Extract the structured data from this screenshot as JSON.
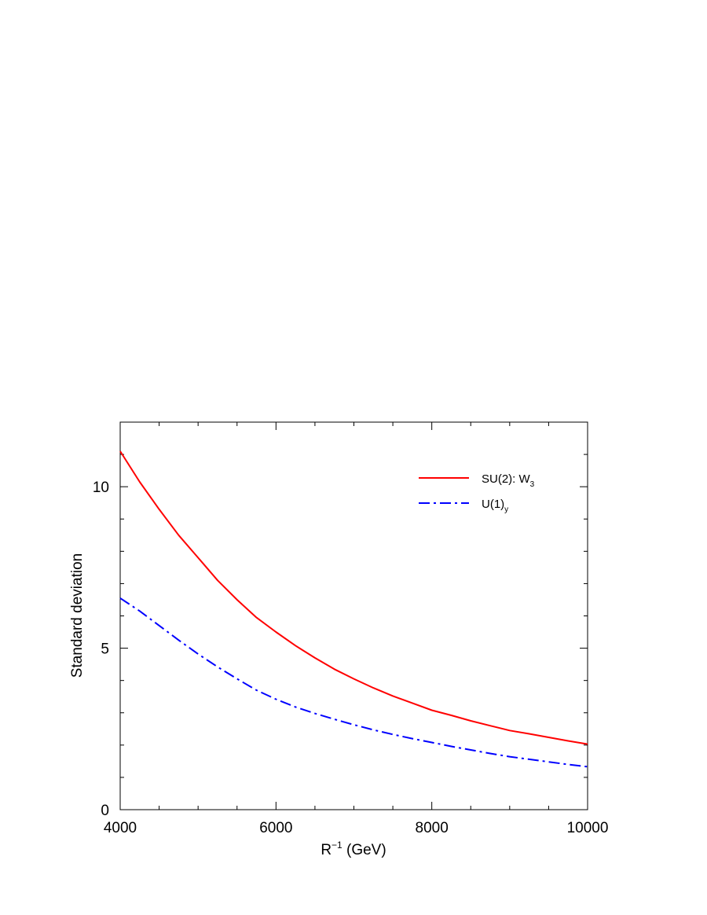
{
  "chart_data": {
    "type": "line",
    "xlabel": {
      "base": "R",
      "sup": "−1",
      "rest": " (GeV)"
    },
    "ylabel": "Standard deviation",
    "xlim": [
      4000,
      10000
    ],
    "ylim": [
      0,
      12
    ],
    "xticks": [
      4000,
      6000,
      8000,
      10000
    ],
    "yticks": [
      0,
      5,
      10
    ],
    "x_minor_step": 500,
    "y_minor_step": 1,
    "grid": false,
    "legend_position": "top-right",
    "series": [
      {
        "name": "SU(2): W",
        "name_sub": "3",
        "color": "#ff0000",
        "style": "solid",
        "x": [
          4000,
          4250,
          4500,
          4750,
          5000,
          5250,
          5500,
          5750,
          6000,
          6250,
          6500,
          6750,
          7000,
          7250,
          7500,
          7750,
          8000,
          8250,
          8500,
          8750,
          9000,
          9250,
          9500,
          9750,
          10000
        ],
        "y": [
          11.1,
          10.15,
          9.3,
          8.5,
          7.8,
          7.1,
          6.5,
          5.95,
          5.5,
          5.08,
          4.7,
          4.35,
          4.05,
          3.77,
          3.52,
          3.3,
          3.08,
          2.92,
          2.75,
          2.6,
          2.45,
          2.35,
          2.24,
          2.13,
          2.03
        ]
      },
      {
        "name": "U(1)",
        "name_sub": "y",
        "color": "#0000ff",
        "style": "dash-dot",
        "x": [
          4000,
          4250,
          4500,
          4750,
          5000,
          5250,
          5500,
          5750,
          6000,
          6250,
          6500,
          6750,
          7000,
          7250,
          7500,
          7750,
          8000,
          8250,
          8500,
          8750,
          9000,
          9250,
          9500,
          9750,
          10000
        ],
        "y": [
          6.55,
          6.15,
          5.7,
          5.25,
          4.82,
          4.42,
          4.05,
          3.7,
          3.42,
          3.18,
          2.98,
          2.8,
          2.63,
          2.47,
          2.33,
          2.2,
          2.08,
          1.96,
          1.85,
          1.74,
          1.64,
          1.56,
          1.48,
          1.4,
          1.33
        ]
      }
    ]
  }
}
